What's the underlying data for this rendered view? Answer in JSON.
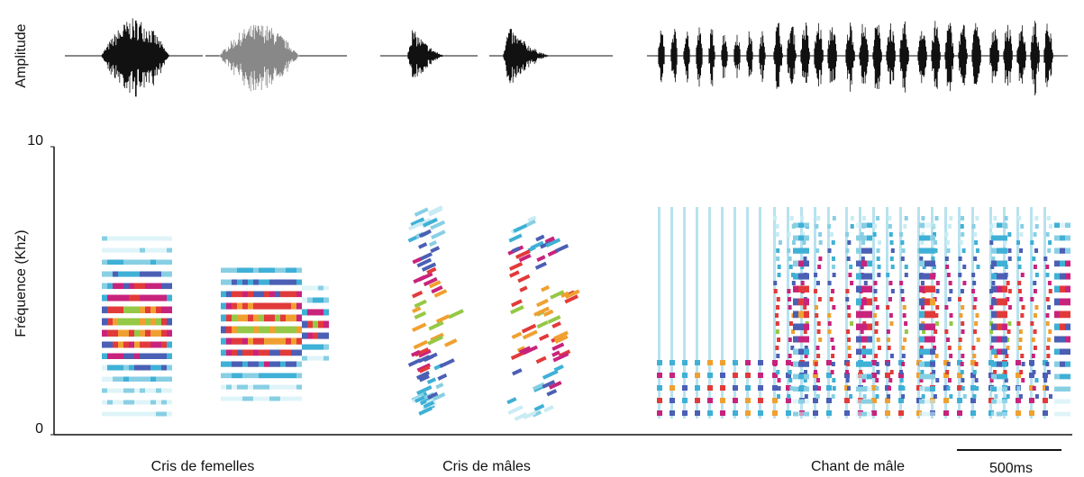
{
  "figure": {
    "amplitude_label": "Amplitude",
    "frequency_label": "Fréquence (Khz)",
    "ylim": [
      0,
      10
    ],
    "yticks": [
      0,
      10
    ],
    "groups": [
      "Cris de femelles",
      "Cris de mâles",
      "Chant de mâle"
    ],
    "scale_bar": "500ms"
  }
}
